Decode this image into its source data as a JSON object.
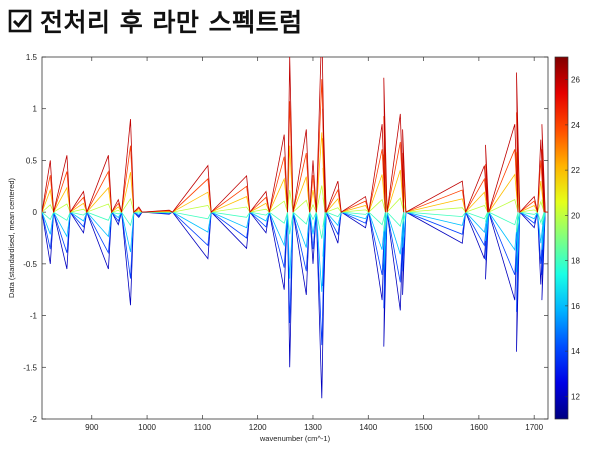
{
  "page": {
    "title": "전처리 후 라만 스펙트럼"
  },
  "chart_data": {
    "type": "line",
    "xlabel": "wavenumber (cm^-1)",
    "ylabel": "Data (standardised, mean centered)",
    "xlim": [
      810,
      1725
    ],
    "ylim": [
      -2,
      1.5
    ],
    "xticks": [
      900,
      1000,
      1100,
      1200,
      1300,
      1400,
      1500,
      1600,
      1700
    ],
    "yticks": [
      -2,
      -1.5,
      -1,
      -0.5,
      0,
      0.5,
      1,
      1.5
    ],
    "colorbar": {
      "min": 11,
      "max": 27,
      "ticks": [
        12,
        14,
        16,
        18,
        20,
        22,
        24,
        26
      ],
      "colormap": "jet"
    },
    "levels": [
      12,
      14,
      16,
      18,
      20,
      22,
      24,
      26
    ],
    "profile": [
      {
        "x": 825,
        "y": 0.5
      },
      {
        "x": 855,
        "y": 0.55
      },
      {
        "x": 885,
        "y": 0.2
      },
      {
        "x": 930,
        "y": -0.55
      },
      {
        "x": 948,
        "y": 0.12
      },
      {
        "x": 970,
        "y": -0.9
      },
      {
        "x": 985,
        "y": 0.05
      },
      {
        "x": 1040,
        "y": 0.02
      },
      {
        "x": 1110,
        "y": 0.45
      },
      {
        "x": 1180,
        "y": 0.35
      },
      {
        "x": 1215,
        "y": -0.2
      },
      {
        "x": 1248,
        "y": 0.75
      },
      {
        "x": 1258,
        "y": -1.5
      },
      {
        "x": 1288,
        "y": -0.8
      },
      {
        "x": 1300,
        "y": 0.5
      },
      {
        "x": 1318,
        "y": 1.0
      },
      {
        "x": 1316,
        "y": -1.8
      },
      {
        "x": 1345,
        "y": 0.3
      },
      {
        "x": 1395,
        "y": -0.15
      },
      {
        "x": 1425,
        "y": 0.85
      },
      {
        "x": 1428,
        "y": -1.3
      },
      {
        "x": 1458,
        "y": 0.95
      },
      {
        "x": 1462,
        "y": -0.8
      },
      {
        "x": 1570,
        "y": -0.3
      },
      {
        "x": 1610,
        "y": 0.45
      },
      {
        "x": 1612,
        "y": -0.65
      },
      {
        "x": 1665,
        "y": 0.85
      },
      {
        "x": 1668,
        "y": -1.35
      },
      {
        "x": 1700,
        "y": 0.15
      },
      {
        "x": 1712,
        "y": 0.7
      },
      {
        "x": 1714,
        "y": -0.85
      }
    ],
    "grid": false,
    "legend": "none"
  }
}
